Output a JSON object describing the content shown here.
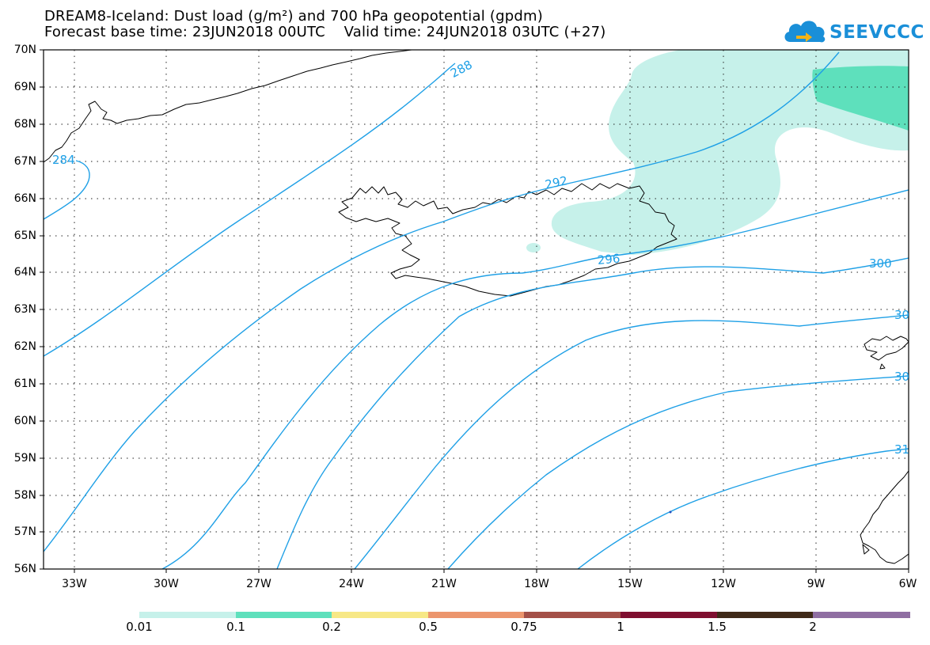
{
  "title": {
    "line1": "DREAM8-Iceland: Dust load (g/m²) and 700 hPa geopotential (gpdm)",
    "line2": "Forecast base time: 23JUN2018 00UTC    Valid time: 24JUN2018 03UTC (+27)"
  },
  "logo": {
    "text": "SEEVCCC",
    "icon": "cloud-icon"
  },
  "map": {
    "lat_labels": [
      "70N",
      "69N",
      "68N",
      "67N",
      "66N",
      "65N",
      "64N",
      "63N",
      "62N",
      "61N",
      "60N",
      "59N",
      "58N",
      "57N",
      "56N"
    ],
    "lon_labels": [
      "33W",
      "30W",
      "27W",
      "24W",
      "21W",
      "18W",
      "15W",
      "12W",
      "9W",
      "6W"
    ],
    "contour_labels": {
      "c284": "284",
      "c288": "288",
      "c292": "292",
      "c296": "296",
      "c300": "300",
      "c304": "30",
      "c308": "30",
      "c312": "31"
    },
    "contour_color": "#1fa0e6"
  },
  "colorbar": {
    "labels": [
      "0.01",
      "0.1",
      "0.2",
      "0.5",
      "0.75",
      "1",
      "1.5",
      "2"
    ],
    "colors": [
      "#c6f1ea",
      "#5ee0bc",
      "#f7e886",
      "#ec956d",
      "#a45048",
      "#7f0f30",
      "#3f2a18",
      "#8f6ea2"
    ]
  }
}
